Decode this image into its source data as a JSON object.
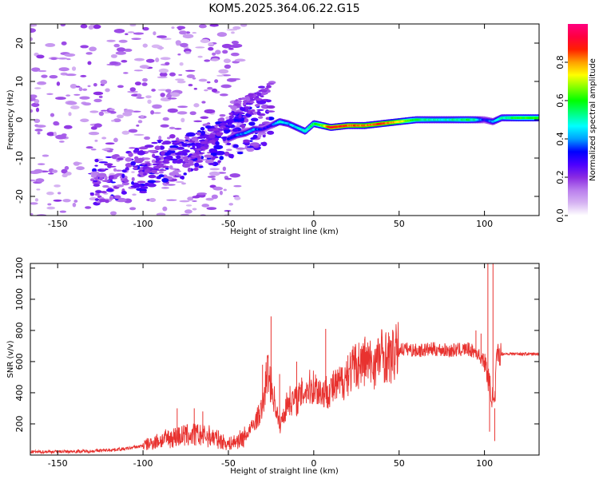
{
  "title": "KOM5.2025.364.06.22.G15",
  "colors": {
    "snr_line": "#e8322f",
    "axis": "#000000"
  },
  "chart_data": [
    {
      "type": "heatmap",
      "panel": "top",
      "title": "KOM5.2025.364.06.22.G15",
      "xlabel": "Height of straight line (km)",
      "ylabel": "Frequency (Hz)",
      "xlim": [
        -166,
        132
      ],
      "ylim": [
        -25,
        25
      ],
      "xticks": [
        -150,
        -100,
        -50,
        0,
        50,
        100
      ],
      "xtick_labels": [
        "-150",
        "-100",
        "-50",
        "0",
        "50",
        "100"
      ],
      "yticks": [
        -20,
        -10,
        0,
        10,
        20
      ],
      "ytick_labels": [
        "-20",
        "-10",
        "0",
        "10",
        "20"
      ],
      "colorbar": {
        "label": "Normalized spectral amplitude",
        "range": [
          0,
          1
        ],
        "ticks": [
          0.0,
          0.2,
          0.4,
          0.6,
          0.8
        ],
        "tick_labels": [
          "0.0",
          "0.2",
          "0.4",
          "0.6",
          "0.8"
        ],
        "colormap": [
          "#ffffff",
          "#d6b3f2",
          "#b97ded",
          "#8a2be2",
          "#4b00ff",
          "#0000ff",
          "#00a0ff",
          "#00ffff",
          "#00ff80",
          "#00ff00",
          "#80ff00",
          "#ffff00",
          "#ffa000",
          "#ff2000",
          "#ff0040",
          "#ff0080"
        ]
      },
      "ridge": {
        "x": [
          -50,
          -45,
          -40,
          -35,
          -30,
          -25,
          -20,
          -15,
          -10,
          -5,
          0,
          5,
          10,
          20,
          30,
          40,
          50,
          60,
          70,
          80,
          90,
          95,
          100,
          105,
          110,
          120,
          132
        ],
        "freq": [
          -5,
          -4,
          -3.5,
          -2.5,
          -2.5,
          -1.5,
          -0.5,
          -1,
          -2,
          -3,
          -1,
          -1.5,
          -2,
          -1.5,
          -1.5,
          -1,
          -0.5,
          0,
          0,
          0,
          0,
          0,
          0,
          -0.5,
          0.5,
          0.5,
          0.5
        ],
        "amplitude": [
          0.3,
          0.35,
          0.4,
          0.4,
          0.3,
          0.3,
          0.5,
          0.4,
          0.45,
          0.5,
          0.55,
          0.65,
          0.9,
          0.85,
          0.8,
          0.85,
          0.75,
          0.55,
          0.5,
          0.5,
          0.55,
          0.5,
          0.3,
          0.4,
          0.5,
          0.6,
          0.6
        ]
      },
      "branches": [
        {
          "x": [
            -100,
            -85,
            -70,
            -60,
            -50,
            -42
          ],
          "freq": [
            -14,
            -11,
            -8,
            -5,
            -2,
            1
          ],
          "amplitude": [
            0.2,
            0.22,
            0.25,
            0.28,
            0.3,
            0.3
          ]
        },
        {
          "x": [
            -75,
            -65,
            -55,
            -45,
            -38,
            -30
          ],
          "freq": [
            -12,
            -7,
            -3,
            1,
            4,
            8
          ],
          "amplitude": [
            0.18,
            0.2,
            0.22,
            0.25,
            0.25,
            0.22
          ]
        },
        {
          "x": [
            -48,
            -40,
            -33,
            -27,
            -24
          ],
          "freq": [
            4,
            5,
            6,
            8,
            9
          ],
          "amplitude": [
            0.15,
            0.18,
            0.2,
            0.18,
            0.15
          ]
        }
      ]
    },
    {
      "type": "line",
      "panel": "bottom",
      "xlabel": "Height of straight line (km)",
      "ylabel": "SNR (v/v)",
      "xlim": [
        -166,
        132
      ],
      "ylim": [
        0,
        1230
      ],
      "xticks": [
        -150,
        -100,
        -50,
        0,
        50,
        100
      ],
      "xtick_labels": [
        "-150",
        "-100",
        "-50",
        "0",
        "50",
        "100"
      ],
      "yticks": [
        200,
        400,
        600,
        800,
        1000,
        1200
      ],
      "ytick_labels": [
        "200",
        "400",
        "600",
        "800",
        "1000",
        "1200"
      ],
      "series": [
        {
          "name": "SNR",
          "x": [
            -166,
            -150,
            -130,
            -110,
            -100,
            -90,
            -80,
            -70,
            -60,
            -50,
            -45,
            -40,
            -35,
            -30,
            -27,
            -25,
            -22,
            -20,
            -15,
            -10,
            -5,
            0,
            5,
            10,
            15,
            20,
            25,
            30,
            35,
            40,
            45,
            50,
            55,
            60,
            70,
            80,
            90,
            95,
            100,
            102,
            104,
            105,
            106,
            107,
            108,
            110,
            120,
            132
          ],
          "values": [
            20,
            22,
            25,
            40,
            60,
            95,
            120,
            130,
            120,
            70,
            90,
            120,
            200,
            300,
            550,
            450,
            300,
            180,
            350,
            350,
            420,
            440,
            400,
            420,
            450,
            520,
            580,
            600,
            580,
            650,
            620,
            680,
            680,
            670,
            680,
            670,
            680,
            660,
            600,
            500,
            400,
            350,
            300,
            600,
            650,
            650,
            650,
            648
          ],
          "spikes": [
            {
              "x": -80,
              "value": 300
            },
            {
              "x": -70,
              "value": 300
            },
            {
              "x": -65,
              "value": 280
            },
            {
              "x": -30,
              "value": 580
            },
            {
              "x": -25,
              "value": 890
            },
            {
              "x": -20,
              "value": 520
            },
            {
              "x": -10,
              "value": 600
            },
            {
              "x": 7,
              "value": 810
            },
            {
              "x": 20,
              "value": 640
            },
            {
              "x": 30,
              "value": 760
            },
            {
              "x": 40,
              "value": 760
            },
            {
              "x": 95,
              "value": 800
            },
            {
              "x": 98,
              "value": 780
            },
            {
              "x": 102,
              "value": 1230
            },
            {
              "x": 105,
              "value": 1230
            },
            {
              "x": 103,
              "value": 150
            },
            {
              "x": 106,
              "value": 90
            }
          ]
        }
      ]
    }
  ]
}
